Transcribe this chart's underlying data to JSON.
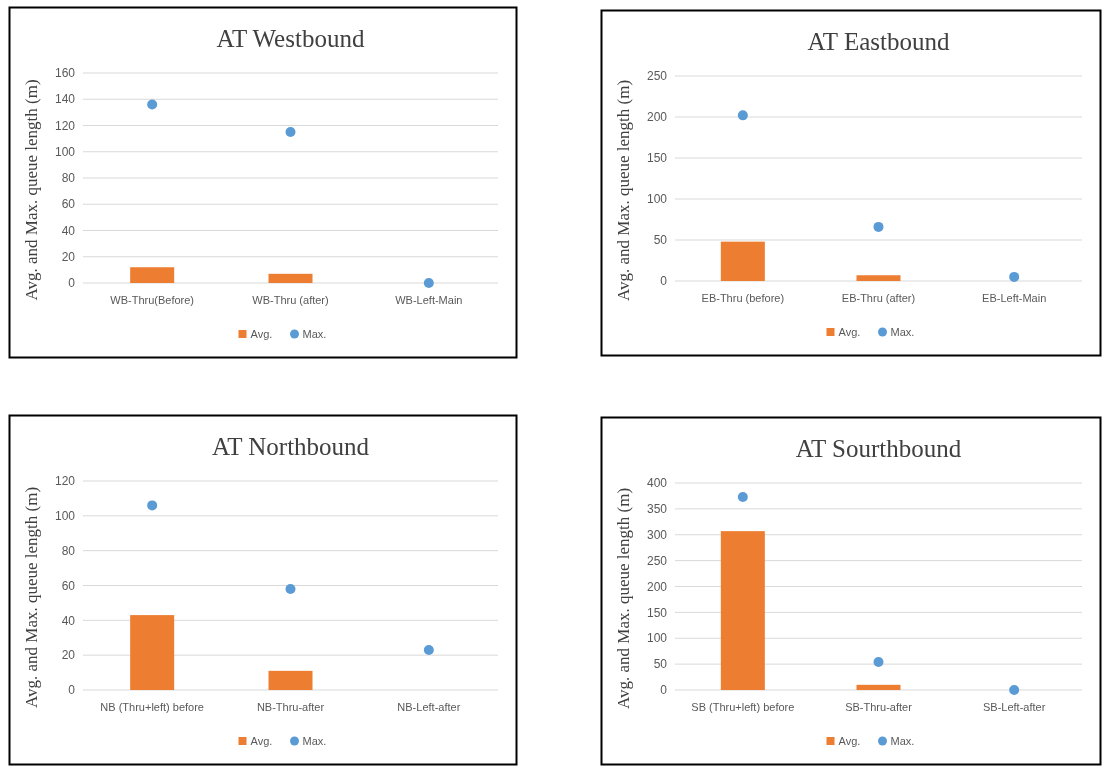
{
  "chart_data": [
    {
      "type": "bar",
      "title": "AT Westbound",
      "ylabel": "Avg. and Max. queue length (m)",
      "categories": [
        "WB-Thru(Before)",
        "WB-Thru (after)",
        "WB-Left-Main"
      ],
      "series": [
        {
          "name": "Avg.",
          "type": "bar",
          "color": "#ed7d31",
          "values": [
            12,
            7,
            0
          ]
        },
        {
          "name": "Max.",
          "type": "scatter",
          "color": "#5b9bd5",
          "values": [
            136,
            115,
            0
          ]
        }
      ],
      "ylim": [
        0,
        160
      ],
      "yticks": [
        0,
        20,
        40,
        60,
        80,
        100,
        120,
        140,
        160
      ],
      "grid": "y",
      "legend": "bottom",
      "marker": "circle"
    },
    {
      "type": "bar",
      "title": "AT Eastbound",
      "ylabel": "Avg. and Max. queue length (m)",
      "categories": [
        "EB-Thru (before)",
        "EB-Thru (after)",
        "EB-Left-Main"
      ],
      "series": [
        {
          "name": "Avg.",
          "type": "bar",
          "color": "#ed7d31",
          "values": [
            48,
            7,
            0
          ]
        },
        {
          "name": "Max.",
          "type": "scatter",
          "color": "#5b9bd5",
          "values": [
            202,
            66,
            5
          ]
        }
      ],
      "ylim": [
        0,
        250
      ],
      "yticks": [
        0,
        50,
        100,
        150,
        200,
        250
      ],
      "grid": "y",
      "legend": "bottom",
      "marker": "circle"
    },
    {
      "type": "bar",
      "title": "AT Northbound",
      "ylabel": "Avg. and Max. queue length (m)",
      "categories": [
        "NB (Thru+left) before",
        "NB-Thru-after",
        "NB-Left-after"
      ],
      "series": [
        {
          "name": "Avg.",
          "type": "bar",
          "color": "#ed7d31",
          "values": [
            43,
            11,
            0
          ]
        },
        {
          "name": "Max.",
          "type": "scatter",
          "color": "#5b9bd5",
          "values": [
            106,
            58,
            23
          ]
        }
      ],
      "ylim": [
        0,
        120
      ],
      "yticks": [
        0,
        20,
        40,
        60,
        80,
        100,
        120
      ],
      "grid": "y",
      "legend": "bottom",
      "marker": "circle"
    },
    {
      "type": "bar",
      "title": "AT Sourthbound",
      "ylabel": "Avg. and Max. queue length (m)",
      "categories": [
        "SB (Thru+left) before",
        "SB-Thru-after",
        "SB-Left-after"
      ],
      "series": [
        {
          "name": "Avg.",
          "type": "bar",
          "color": "#ed7d31",
          "values": [
            307,
            10,
            0
          ]
        },
        {
          "name": "Max.",
          "type": "scatter",
          "color": "#5b9bd5",
          "values": [
            373,
            54,
            0
          ]
        }
      ],
      "ylim": [
        0,
        400
      ],
      "yticks": [
        0,
        50,
        100,
        150,
        200,
        250,
        300,
        350,
        400
      ],
      "grid": "y",
      "legend": "bottom",
      "marker": "circle"
    }
  ]
}
